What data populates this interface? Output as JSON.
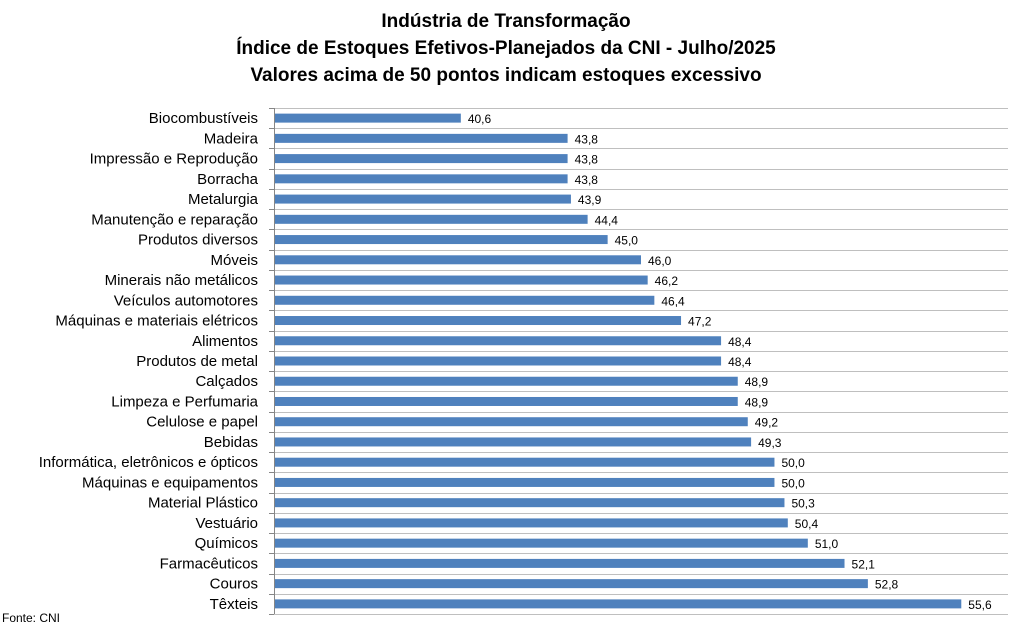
{
  "source": "Fonte: CNI",
  "chart_data": {
    "type": "bar",
    "orientation": "horizontal",
    "title": "Indústria de Transformação",
    "subtitle": "Índice de Estoques Efetivos-Planejados da CNI - Julho/2025",
    "subtitle2": "Valores acima de 50 pontos indicam estoques excessivo",
    "xlabel": "",
    "ylabel": "",
    "xlim": [
      35,
      57
    ],
    "grid": true,
    "categories": [
      "Biocombustíveis",
      "Madeira",
      "Impressão e Reprodução",
      "Borracha",
      "Metalurgia",
      "Manutenção e reparação",
      "Produtos diversos",
      "Móveis",
      "Minerais não metálicos",
      "Veículos automotores",
      "Máquinas e materiais elétricos",
      "Alimentos",
      "Produtos de metal",
      "Calçados",
      "Limpeza e Perfumaria",
      "Celulose e papel",
      "Bebidas",
      "Informática, eletrônicos e ópticos",
      "Máquinas e equipamentos",
      "Material Plástico",
      "Vestuário",
      "Químicos",
      "Farmacêuticos",
      "Couros",
      "Têxteis"
    ],
    "values": [
      40.6,
      43.8,
      43.8,
      43.8,
      43.9,
      44.4,
      45.0,
      46.0,
      46.2,
      46.4,
      47.2,
      48.4,
      48.4,
      48.9,
      48.9,
      49.2,
      49.3,
      50.0,
      50.0,
      50.3,
      50.4,
      51.0,
      52.1,
      52.8,
      55.6
    ],
    "labels": [
      "40,6",
      "43,8",
      "43,8",
      "43,8",
      "43,9",
      "44,4",
      "45,0",
      "46,0",
      "46,2",
      "46,4",
      "47,2",
      "48,4",
      "48,4",
      "48,9",
      "48,9",
      "49,2",
      "49,3",
      "50,0",
      "50,0",
      "50,3",
      "50,4",
      "51,0",
      "52,1",
      "52,8",
      "55,6"
    ],
    "colors": {
      "bar": "#4F81BD",
      "grid": "#BFBFBF",
      "axis": "#868686"
    }
  }
}
